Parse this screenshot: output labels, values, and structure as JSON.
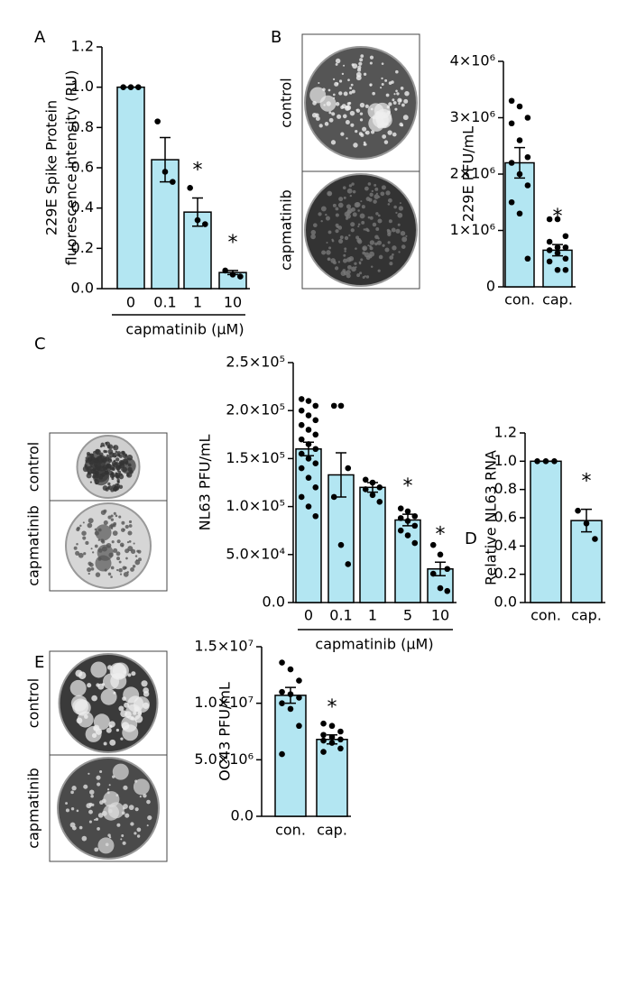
{
  "panel_labels": [
    "A",
    "B",
    "C",
    "D",
    "E"
  ],
  "image_labels": [
    [
      "control",
      "capmatinib"
    ],
    [
      "control",
      "capmatinib"
    ],
    [
      "control",
      "capmatinib"
    ]
  ],
  "chart_data": [
    {
      "type": "bar",
      "ylabel": [
        "229E Spike Protein",
        "fluorescence intensity (RU)"
      ],
      "xlabel": "capmatinib (μM)",
      "categories": [
        "0",
        "0.1",
        "1",
        "10"
      ],
      "values": [
        1.0,
        0.64,
        0.38,
        0.08
      ],
      "errors": [
        0,
        0.11,
        0.07,
        0.01
      ],
      "points": [
        [
          1,
          1,
          1
        ],
        [
          0.83,
          0.58,
          0.53
        ],
        [
          0.5,
          0.34,
          0.32
        ],
        [
          0.09,
          0.07,
          0.06
        ]
      ],
      "stars": [
        null,
        null,
        "*",
        "*"
      ],
      "color": "#b3e6f2",
      "ylim": [
        0,
        1.2
      ],
      "yticks": [
        {
          "value": 0,
          "label": "0.0"
        },
        0.2,
        0.4,
        0.6,
        0.8,
        {
          "value": 1,
          "label": "1.0"
        },
        1.2
      ]
    },
    {
      "type": "bar",
      "ylabel": [
        "229E  PFU/mL"
      ],
      "categories": [
        "con.",
        "cap."
      ],
      "values": [
        2200000,
        650000
      ],
      "errors": [
        270000,
        100000
      ],
      "points": [
        [
          3300000,
          3200000,
          3000000,
          2900000,
          2600000,
          2300000,
          2200000,
          2000000,
          1800000,
          1500000,
          1300000,
          500000
        ],
        [
          1200000,
          1200000,
          900000,
          800000,
          700000,
          700000,
          650000,
          600000,
          500000,
          450000,
          300000,
          300000
        ]
      ],
      "stars": [
        null,
        "*"
      ],
      "color": "#b3e6f2",
      "ylim": [
        0,
        4000000
      ],
      "yticks": [
        0,
        {
          "value": 1000000,
          "label": "1×10⁶"
        },
        {
          "value": 2000000,
          "label": "2×10⁶"
        },
        {
          "value": 3000000,
          "label": "3×10⁶"
        },
        {
          "value": 4000000,
          "label": "4×10⁶"
        }
      ]
    },
    {
      "type": "bar",
      "ylabel": [
        "NL63 PFU/mL"
      ],
      "xlabel": "capmatinib (μM)",
      "categories": [
        "0",
        "0.1",
        "1",
        "5",
        "10"
      ],
      "values": [
        160000,
        133000,
        120000,
        86000,
        35000
      ],
      "errors": [
        7000,
        23000,
        5000,
        6000,
        7000
      ],
      "points": [
        [
          212000,
          210000,
          205000,
          200000,
          195000,
          190000,
          185000,
          180000,
          175000,
          170000,
          165000,
          160000,
          155000,
          150000,
          145000,
          140000,
          130000,
          120000,
          110000,
          100000,
          90000
        ],
        [
          205000,
          205000,
          140000,
          110000,
          60000,
          40000
        ],
        [
          128000,
          125000,
          120000,
          118000,
          112000,
          105000
        ],
        [
          98000,
          95000,
          90000,
          88000,
          85000,
          80000,
          75000,
          70000,
          62000
        ],
        [
          60000,
          50000,
          35000,
          30000,
          15000,
          12000
        ]
      ],
      "stars": [
        null,
        null,
        null,
        "*",
        "*"
      ],
      "color": "#b3e6f2",
      "ylim": [
        0,
        250000
      ],
      "yticks": [
        {
          "value": 0,
          "label": "0.0"
        },
        {
          "value": 50000,
          "label": "5.0×10⁴"
        },
        {
          "value": 100000,
          "label": "1.0×10⁵"
        },
        {
          "value": 150000,
          "label": "1.5×10⁵"
        },
        {
          "value": 200000,
          "label": "2.0×10⁵"
        },
        {
          "value": 250000,
          "label": "2.5×10⁵"
        }
      ]
    },
    {
      "type": "bar",
      "ylabel": [
        "Relative NL63 RNA"
      ],
      "categories": [
        "con.",
        "cap."
      ],
      "values": [
        1.0,
        0.58
      ],
      "errors": [
        0,
        0.08
      ],
      "points": [
        [
          1,
          1,
          1
        ],
        [
          0.65,
          0.56,
          0.45
        ]
      ],
      "stars": [
        null,
        "*"
      ],
      "color": "#b3e6f2",
      "ylim": [
        0,
        1.2
      ],
      "yticks": [
        {
          "value": 0,
          "label": "0.0"
        },
        0.2,
        0.4,
        0.6,
        0.8,
        {
          "value": 1,
          "label": "1.0"
        },
        1.2
      ]
    },
    {
      "type": "bar",
      "ylabel": [
        "OC43 PFU/mL"
      ],
      "categories": [
        "con.",
        "cap."
      ],
      "values": [
        10700000,
        6800000
      ],
      "errors": [
        700000,
        400000
      ],
      "points": [
        [
          13600000,
          13000000,
          12000000,
          11000000,
          10800000,
          10500000,
          10000000,
          9500000,
          8000000,
          5500000
        ],
        [
          8200000,
          8000000,
          7500000,
          7200000,
          7000000,
          6800000,
          6700000,
          6500000,
          6000000,
          5700000
        ]
      ],
      "stars": [
        null,
        "*"
      ],
      "color": "#b3e6f2",
      "ylim": [
        0,
        15000000
      ],
      "yticks": [
        {
          "value": 0,
          "label": "0.0"
        },
        {
          "value": 5000000,
          "label": "5.0×10⁶"
        },
        {
          "value": 10000000,
          "label": "1.0×10⁷"
        },
        {
          "value": 15000000,
          "label": "1.5×10⁷"
        }
      ]
    }
  ]
}
